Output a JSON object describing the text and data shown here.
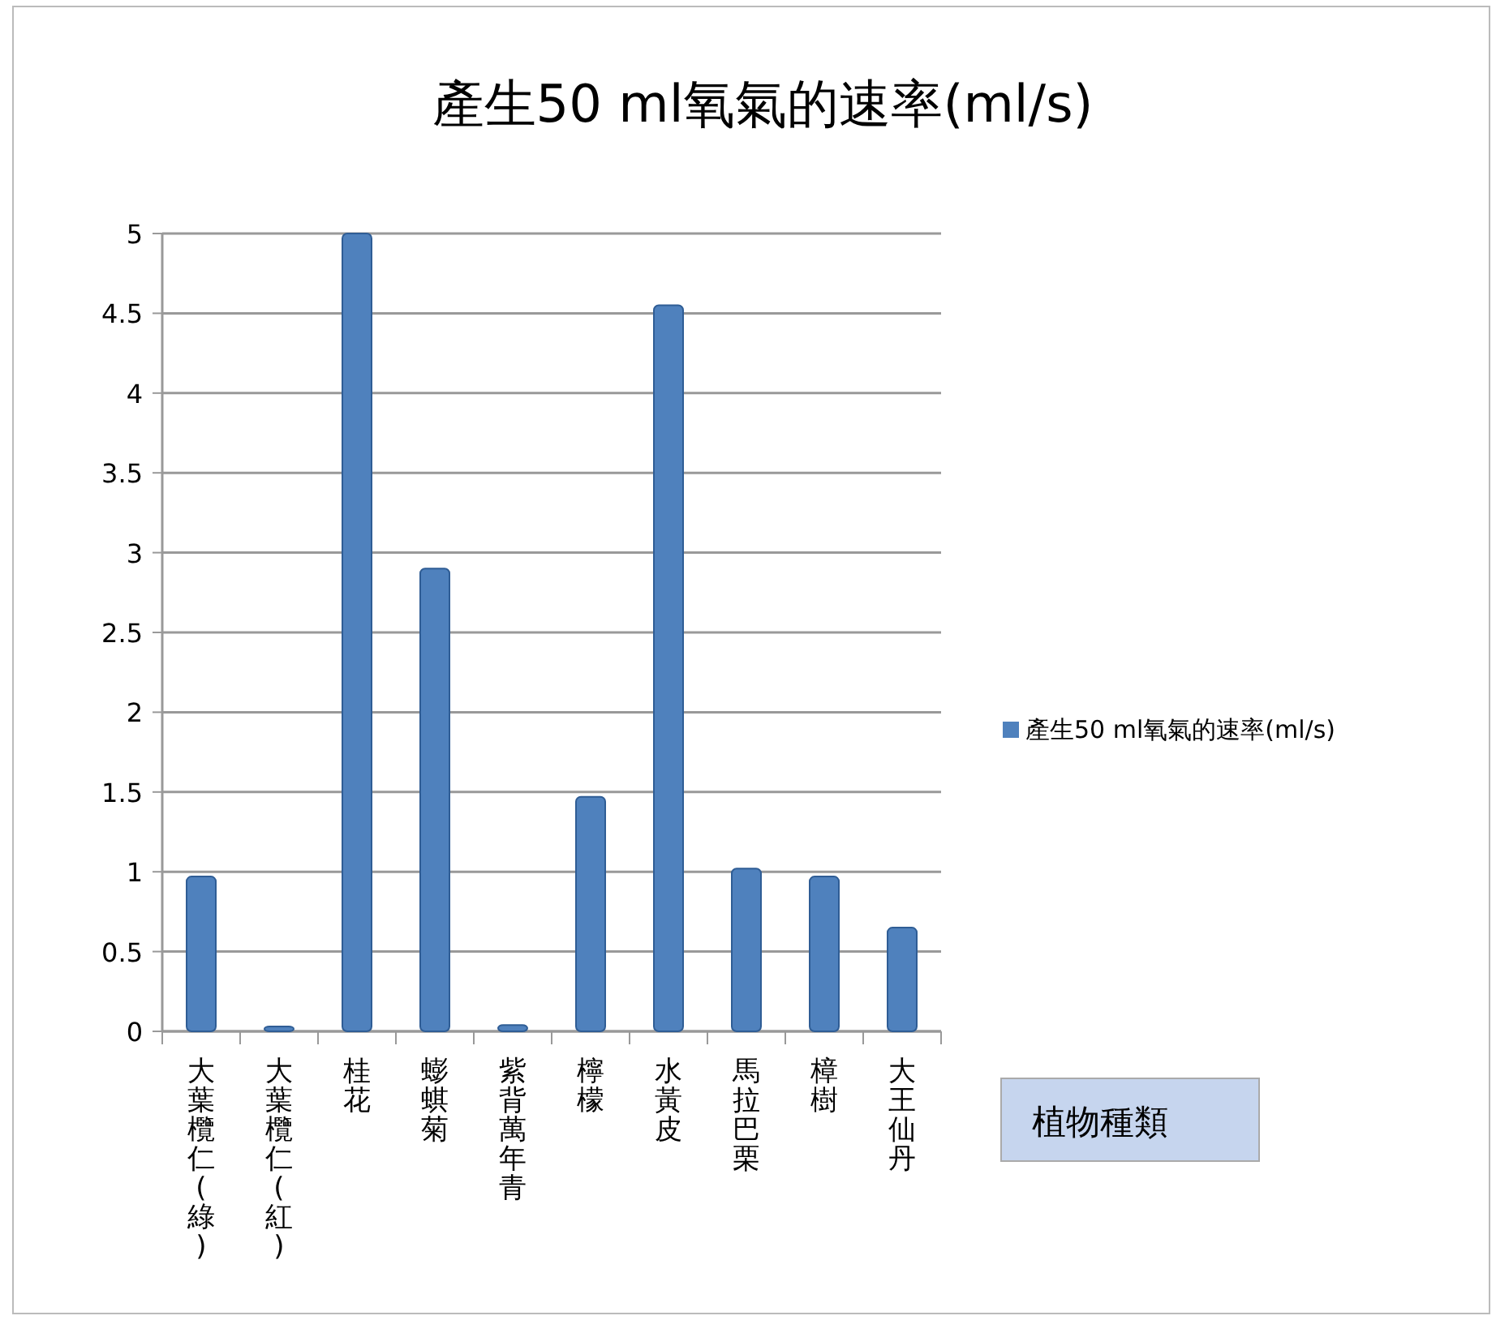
{
  "chart_data": {
    "type": "bar",
    "title": "產生50 ml氧氣的速率(ml/s)",
    "xlabel": "植物種類",
    "categories": [
      "大葉欖仁(綠)",
      "大葉欖仁(紅)",
      "桂花",
      "蟛蜞菊",
      "紫背萬年青",
      "檸檬",
      "水黃皮",
      "馬拉巴栗",
      "樟樹",
      "大王仙丹"
    ],
    "series": [
      {
        "name": "產生50 ml氧氣的速率(ml/s)",
        "color": "#4f81bd",
        "values": [
          0.97,
          0.03,
          5.0,
          2.9,
          0.04,
          1.47,
          4.55,
          1.02,
          0.97,
          0.65
        ]
      }
    ],
    "ylim": [
      0,
      5
    ],
    "yticks": [
      0,
      0.5,
      1,
      1.5,
      2,
      2.5,
      3,
      3.5,
      4,
      4.5,
      5
    ],
    "grid": "y",
    "legend": "right"
  }
}
